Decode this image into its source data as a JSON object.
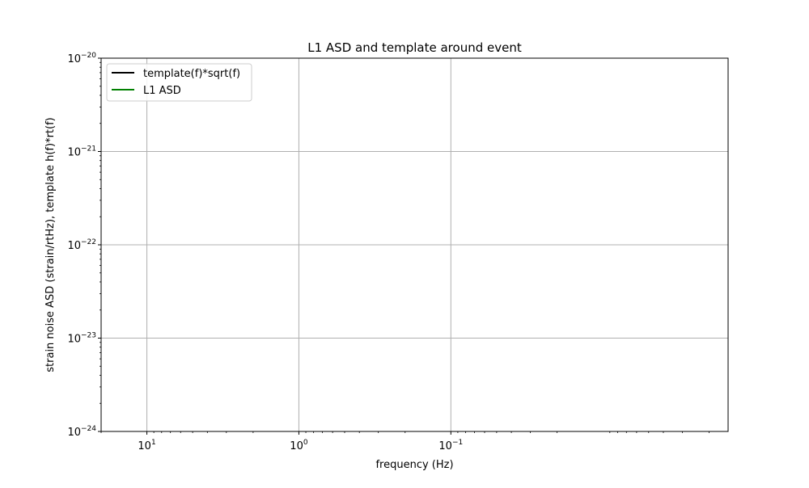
{
  "chart_data": {
    "type": "line",
    "title": "L1 ASD and template around event",
    "xlabel": "frequency (Hz)",
    "ylabel": "strain noise ASD (strain/rtHz), template h(f)*rt(f)",
    "xscale": "log",
    "yscale": "log",
    "x_axis_inverted": true,
    "xlim": [
      20,
      0.0015
    ],
    "ylim": [
      1e-24,
      1e-20
    ],
    "xticks": [
      {
        "value": 10,
        "base": "10",
        "exp": "1"
      },
      {
        "value": 1,
        "base": "10",
        "exp": "0"
      },
      {
        "value": 0.1,
        "base": "10",
        "exp": "−1"
      }
    ],
    "yticks": [
      {
        "value": 1e-24,
        "base": "10",
        "exp": "−24"
      },
      {
        "value": 1e-23,
        "base": "10",
        "exp": "−23"
      },
      {
        "value": 1e-22,
        "base": "10",
        "exp": "−22"
      },
      {
        "value": 1e-21,
        "base": "10",
        "exp": "−21"
      },
      {
        "value": 1e-20,
        "base": "10",
        "exp": "−20"
      }
    ],
    "grid": true,
    "legend_position": "top-left",
    "series": [
      {
        "name": "template(f)*sqrt(f)",
        "color": "#000000",
        "x": [],
        "y": []
      },
      {
        "name": "L1 ASD",
        "color": "#008000",
        "x": [],
        "y": []
      }
    ]
  }
}
